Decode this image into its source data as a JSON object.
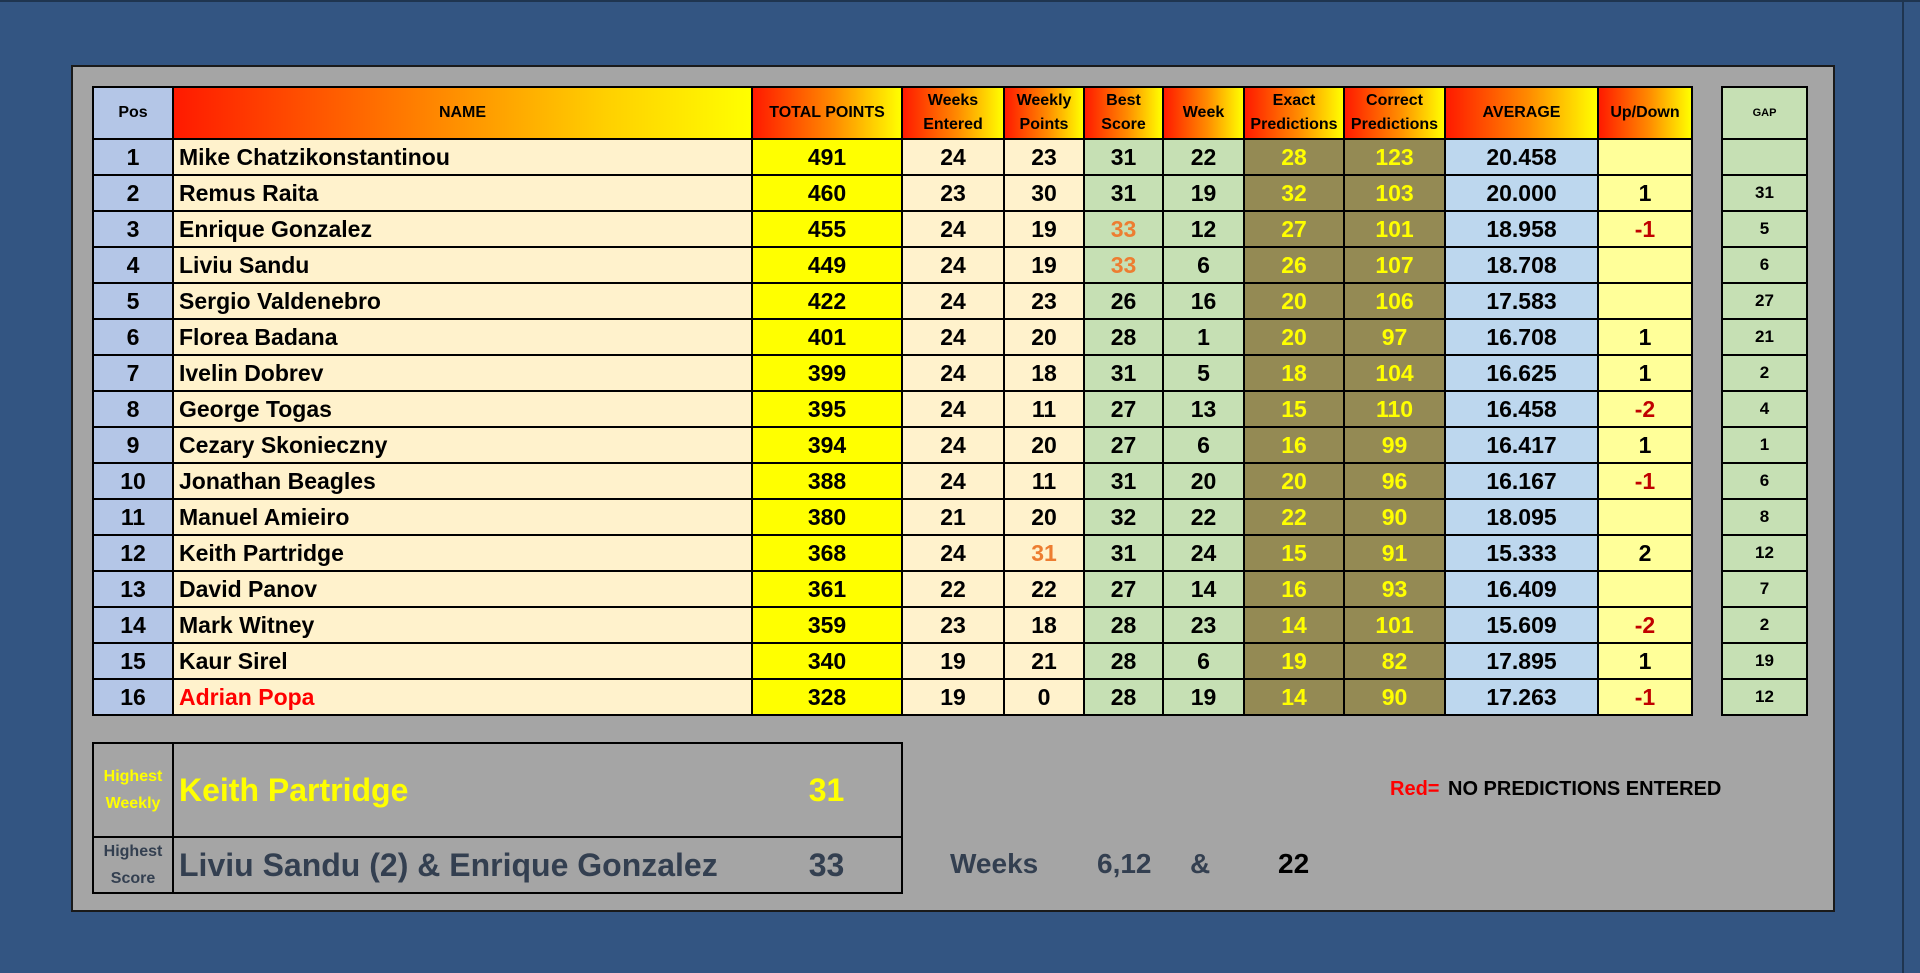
{
  "headers": {
    "pos": "Pos",
    "name": "NAME",
    "total": "TOTAL POINTS",
    "weeks_entered_1": "Weeks",
    "weeks_entered_2": "Entered",
    "weekly_points_1": "Weekly",
    "weekly_points_2": "Points",
    "best_score_1": "Best",
    "best_score_2": "Score",
    "week": "Week",
    "exact_1": "Exact",
    "exact_2": "Predictions",
    "correct_1": "Correct",
    "correct_2": "Predictions",
    "average": "AVERAGE",
    "updown": "Up/Down",
    "gap": "GAP"
  },
  "rows": [
    {
      "pos": "1",
      "name": "Mike Chatzikonstantinou",
      "total": "491",
      "we": "24",
      "wp": "23",
      "best": "31",
      "week": "22",
      "exact": "28",
      "correct": "123",
      "avg": "20.458",
      "ud": "",
      "gap": ""
    },
    {
      "pos": "2",
      "name": "Remus Raita",
      "total": "460",
      "we": "23",
      "wp": "30",
      "best": "31",
      "week": "19",
      "exact": "32",
      "correct": "103",
      "avg": "20.000",
      "ud": "1",
      "gap": "31"
    },
    {
      "pos": "3",
      "name": "Enrique Gonzalez",
      "total": "455",
      "we": "24",
      "wp": "19",
      "best": "33",
      "best_highlight": true,
      "week": "12",
      "exact": "27",
      "correct": "101",
      "avg": "18.958",
      "ud": "-1",
      "gap": "5"
    },
    {
      "pos": "4",
      "name": "Liviu Sandu",
      "total": "449",
      "we": "24",
      "wp": "19",
      "best": "33",
      "best_highlight": true,
      "week": "6",
      "exact": "26",
      "correct": "107",
      "avg": "18.708",
      "ud": "",
      "gap": "6"
    },
    {
      "pos": "5",
      "name": "Sergio Valdenebro",
      "total": "422",
      "we": "24",
      "wp": "23",
      "best": "26",
      "week": "16",
      "exact": "20",
      "correct": "106",
      "avg": "17.583",
      "ud": "",
      "gap": "27"
    },
    {
      "pos": "6",
      "name": "Florea Badana",
      "total": "401",
      "we": "24",
      "wp": "20",
      "best": "28",
      "week": "1",
      "exact": "20",
      "correct": "97",
      "avg": "16.708",
      "ud": "1",
      "gap": "21"
    },
    {
      "pos": "7",
      "name": "Ivelin Dobrev",
      "total": "399",
      "we": "24",
      "wp": "18",
      "best": "31",
      "week": "5",
      "exact": "18",
      "correct": "104",
      "avg": "16.625",
      "ud": "1",
      "gap": "2"
    },
    {
      "pos": "8",
      "name": "George Togas",
      "total": "395",
      "we": "24",
      "wp": "11",
      "best": "27",
      "week": "13",
      "exact": "15",
      "correct": "110",
      "avg": "16.458",
      "ud": "-2",
      "gap": "4"
    },
    {
      "pos": "9",
      "name": "Cezary Skonieczny",
      "total": "394",
      "we": "24",
      "wp": "20",
      "best": "27",
      "week": "6",
      "exact": "16",
      "correct": "99",
      "avg": "16.417",
      "ud": "1",
      "gap": "1"
    },
    {
      "pos": "10",
      "name": "Jonathan Beagles",
      "total": "388",
      "we": "24",
      "wp": "11",
      "best": "31",
      "week": "20",
      "exact": "20",
      "correct": "96",
      "avg": "16.167",
      "ud": "-1",
      "gap": "6"
    },
    {
      "pos": "11",
      "name": "Manuel Amieiro",
      "total": "380",
      "we": "21",
      "wp": "20",
      "best": "32",
      "week": "22",
      "exact": "22",
      "correct": "90",
      "avg": "18.095",
      "ud": "",
      "gap": "8"
    },
    {
      "pos": "12",
      "name": "Keith Partridge",
      "total": "368",
      "we": "24",
      "wp": "31",
      "wp_highlight": true,
      "best": "31",
      "week": "24",
      "exact": "15",
      "correct": "91",
      "avg": "15.333",
      "ud": "2",
      "gap": "12"
    },
    {
      "pos": "13",
      "name": "David Panov",
      "total": "361",
      "we": "22",
      "wp": "22",
      "best": "27",
      "week": "14",
      "exact": "16",
      "correct": "93",
      "avg": "16.409",
      "ud": "",
      "gap": "7"
    },
    {
      "pos": "14",
      "name": "Mark Witney",
      "total": "359",
      "we": "23",
      "wp": "18",
      "best": "28",
      "week": "23",
      "exact": "14",
      "correct": "101",
      "avg": "15.609",
      "ud": "-2",
      "gap": "2"
    },
    {
      "pos": "15",
      "name": "Kaur Sirel",
      "total": "340",
      "we": "19",
      "wp": "21",
      "best": "28",
      "week": "6",
      "exact": "19",
      "correct": "82",
      "avg": "17.895",
      "ud": "1",
      "gap": "19"
    },
    {
      "pos": "16",
      "name": "Adrian Popa",
      "name_red": true,
      "total": "328",
      "we": "19",
      "wp": "0",
      "best": "28",
      "week": "19",
      "exact": "14",
      "correct": "90",
      "avg": "17.263",
      "ud": "-1",
      "gap": "12"
    }
  ],
  "summary": {
    "highest_weekly": {
      "label_1": "Highest",
      "label_2": "Weekly",
      "name": "Keith Partridge",
      "value": "31"
    },
    "highest_score": {
      "label_1": "Highest",
      "label_2": "Score",
      "name": "Liviu Sandu (2) & Enrique Gonzalez",
      "value": "33"
    },
    "weeks_label": "Weeks",
    "weeks_1": "6,12",
    "amp": "&",
    "weeks_2": "22",
    "legend_red": "Red=",
    "legend_text": "NO PREDICTIONS ENTERED"
  },
  "colors": {
    "background": "#335582",
    "panel": "#a5a5a5",
    "highlight_orange": "#ed7d31",
    "no_predictions_red": "#ff0000",
    "negative": "#c00000"
  }
}
